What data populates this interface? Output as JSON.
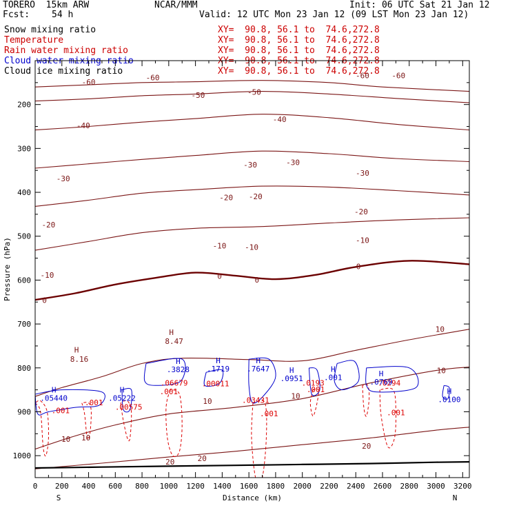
{
  "header": {
    "model": "TORERO  15km ARW",
    "center": "NCAR/MMM",
    "init": "Init: 06 UTC Sat 21 Jan 12",
    "fcst_label": "Fcst:",
    "fcst_value": "54 h",
    "valid": "Valid: 12 UTC Mon 23 Jan 12 (09 LST Mon 23 Jan 12)"
  },
  "fields": [
    {
      "name": "Snow mixing ratio",
      "xy": "XY=  90.8, 56.1 to  74.6,272.8",
      "color": "#000000"
    },
    {
      "name": "Temperature",
      "xy": "XY=  90.8, 56.1 to  74.6,272.8",
      "color": "#cc0000"
    },
    {
      "name": "Rain water mixing ratio",
      "xy": "XY=  90.8, 56.1 to  74.6,272.8",
      "color": "#cc0000"
    },
    {
      "name": "Cloud water mixing ratio",
      "xy": "XY=  90.8, 56.1 to  74.6,272.8",
      "color": "#0000cc"
    },
    {
      "name": "Cloud ice mixing ratio",
      "xy": "XY=  90.8, 56.1 to  74.6,272.8",
      "color": "#000000"
    }
  ],
  "chart_data": {
    "type": "contour",
    "xlabel": "Distance (km)",
    "ylabel": "Pressure (hPa)",
    "xlim": [
      0,
      3250
    ],
    "ylim": [
      1050,
      100
    ],
    "x_ticks": [
      0,
      200,
      400,
      600,
      800,
      1000,
      1200,
      1400,
      1600,
      1800,
      2000,
      2200,
      2400,
      2600,
      2800,
      3000,
      3200
    ],
    "y_ticks": [
      200,
      300,
      400,
      500,
      600,
      700,
      800,
      900,
      1000
    ],
    "left_end": "S",
    "right_end": "N",
    "colors": {
      "temperature": "#7a1414",
      "zero_isotherm": "#6b0000",
      "rain": "#dd0000",
      "cloud_water": "#0000cc",
      "terrain": "#000000"
    },
    "temperature_isotherms": [
      {
        "value": -60,
        "points": [
          [
            0,
            160
          ],
          [
            400,
            155
          ],
          [
            800,
            150
          ],
          [
            1200,
            148
          ],
          [
            1700,
            145
          ],
          [
            2200,
            150
          ],
          [
            2600,
            160
          ],
          [
            3250,
            170
          ]
        ]
      },
      {
        "value": -50,
        "points": [
          [
            0,
            192
          ],
          [
            400,
            187
          ],
          [
            800,
            180
          ],
          [
            1200,
            176
          ],
          [
            1700,
            170
          ],
          [
            2200,
            176
          ],
          [
            2700,
            186
          ],
          [
            3250,
            196
          ]
        ]
      },
      {
        "value": -40,
        "points": [
          [
            0,
            258
          ],
          [
            400,
            250
          ],
          [
            800,
            240
          ],
          [
            1200,
            232
          ],
          [
            1700,
            222
          ],
          [
            2200,
            230
          ],
          [
            2700,
            245
          ],
          [
            3250,
            258
          ]
        ]
      },
      {
        "value": -30,
        "points": [
          [
            0,
            345
          ],
          [
            400,
            335
          ],
          [
            800,
            325
          ],
          [
            1200,
            316
          ],
          [
            1700,
            306
          ],
          [
            2200,
            312
          ],
          [
            2700,
            323
          ],
          [
            3250,
            330
          ]
        ]
      },
      {
        "value": -20,
        "points": [
          [
            0,
            432
          ],
          [
            400,
            418
          ],
          [
            800,
            402
          ],
          [
            1200,
            394
          ],
          [
            1700,
            386
          ],
          [
            2200,
            388
          ],
          [
            2700,
            396
          ],
          [
            3250,
            406
          ]
        ]
      },
      {
        "value": -10,
        "points": [
          [
            0,
            532
          ],
          [
            400,
            512
          ],
          [
            800,
            492
          ],
          [
            1200,
            482
          ],
          [
            1700,
            478
          ],
          [
            2200,
            470
          ],
          [
            2700,
            463
          ],
          [
            3250,
            458
          ]
        ]
      },
      {
        "value": 0,
        "points": [
          [
            0,
            645
          ],
          [
            300,
            630
          ],
          [
            600,
            610
          ],
          [
            900,
            595
          ],
          [
            1200,
            583
          ],
          [
            1500,
            590
          ],
          [
            1800,
            598
          ],
          [
            2100,
            588
          ],
          [
            2400,
            570
          ],
          [
            2800,
            556
          ],
          [
            3250,
            564
          ]
        ]
      },
      {
        "value": 10,
        "points": [
          [
            0,
            865
          ],
          [
            200,
            845
          ],
          [
            500,
            820
          ],
          [
            800,
            790
          ],
          [
            1100,
            778
          ],
          [
            1600,
            781
          ],
          [
            2000,
            784
          ],
          [
            2400,
            760
          ],
          [
            2800,
            736
          ],
          [
            3250,
            712
          ]
        ]
      },
      {
        "value": 10,
        "points": [
          [
            0,
            985
          ],
          [
            300,
            955
          ],
          [
            600,
            930
          ],
          [
            1000,
            905
          ],
          [
            1500,
            890
          ],
          [
            2000,
            870
          ],
          [
            2500,
            835
          ],
          [
            3000,
            806
          ],
          [
            3250,
            798
          ]
        ]
      },
      {
        "value": 20,
        "points": [
          [
            0,
            1030
          ],
          [
            500,
            1017
          ],
          [
            1000,
            1003
          ],
          [
            1500,
            990
          ],
          [
            2000,
            975
          ],
          [
            2500,
            960
          ],
          [
            3000,
            942
          ],
          [
            3250,
            935
          ]
        ]
      }
    ],
    "temperature_labels": [
      {
        "text": "-60",
        "x": 400,
        "p": 155
      },
      {
        "text": "-60",
        "x": 880,
        "p": 145
      },
      {
        "text": "-60",
        "x": 2450,
        "p": 140
      },
      {
        "text": "-60",
        "x": 2720,
        "p": 140
      },
      {
        "text": "-50",
        "x": 1220,
        "p": 185
      },
      {
        "text": "-50",
        "x": 1640,
        "p": 178
      },
      {
        "text": "-40",
        "x": 360,
        "p": 254
      },
      {
        "text": "-40",
        "x": 1830,
        "p": 240
      },
      {
        "text": "-30",
        "x": 210,
        "p": 375
      },
      {
        "text": "-30",
        "x": 1610,
        "p": 343
      },
      {
        "text": "-30",
        "x": 1930,
        "p": 338
      },
      {
        "text": "-30",
        "x": 2450,
        "p": 362
      },
      {
        "text": "-20",
        "x": 100,
        "p": 480
      },
      {
        "text": "-20",
        "x": 1430,
        "p": 418
      },
      {
        "text": "-20",
        "x": 1650,
        "p": 416
      },
      {
        "text": "-20",
        "x": 2440,
        "p": 450
      },
      {
        "text": "-10",
        "x": 90,
        "p": 595
      },
      {
        "text": "-10",
        "x": 1380,
        "p": 528
      },
      {
        "text": "-10",
        "x": 1620,
        "p": 531
      },
      {
        "text": "-10",
        "x": 2450,
        "p": 515
      },
      {
        "text": "0",
        "x": 70,
        "p": 652
      },
      {
        "text": "0",
        "x": 1380,
        "p": 597
      },
      {
        "text": "0",
        "x": 1660,
        "p": 606
      },
      {
        "text": "0",
        "x": 2420,
        "p": 575
      },
      {
        "text": "10",
        "x": 3030,
        "p": 718
      },
      {
        "text": "10",
        "x": 3040,
        "p": 812
      },
      {
        "text": "10",
        "x": 1950,
        "p": 870
      },
      {
        "text": "10",
        "x": 1290,
        "p": 882
      },
      {
        "text": "10",
        "x": 230,
        "p": 968
      },
      {
        "text": "10",
        "x": 380,
        "p": 965
      },
      {
        "text": "20",
        "x": 2480,
        "p": 984
      },
      {
        "text": "20",
        "x": 1250,
        "p": 1012
      },
      {
        "text": "20",
        "x": 1010,
        "p": 1020
      }
    ],
    "maxima_labels": [
      {
        "text": "H",
        "x": 310,
        "p": 765,
        "color": "#7a1414"
      },
      {
        "text": "8.16",
        "x": 330,
        "p": 786,
        "color": "#7a1414"
      },
      {
        "text": "H",
        "x": 1020,
        "p": 725,
        "color": "#7a1414"
      },
      {
        "text": "8.47",
        "x": 1040,
        "p": 745,
        "color": "#7a1414"
      }
    ],
    "rain_maxima": [
      {
        "x": 1040,
        "p": 840,
        "value": ".06679"
      },
      {
        "x": 1350,
        "p": 842,
        "value": ".00011"
      },
      {
        "x": 1650,
        "p": 880,
        "value": ".03431"
      },
      {
        "x": 2080,
        "p": 840,
        "value": ".0193"
      },
      {
        "x": 2650,
        "p": 840,
        "value": ".0294"
      }
    ],
    "rain_contours": [
      {
        "label": ".001",
        "points": [
          [
            0,
            880
          ],
          [
            40,
            900
          ],
          [
            60,
            980
          ],
          [
            80,
            1000
          ],
          [
            100,
            960
          ],
          [
            90,
            900
          ],
          [
            40,
            875
          ]
        ]
      },
      {
        "label": ".001",
        "points": [
          [
            350,
            880
          ],
          [
            370,
            905
          ],
          [
            390,
            960
          ],
          [
            410,
            950
          ],
          [
            420,
            900
          ],
          [
            400,
            880
          ]
        ]
      },
      {
        "label": ".001",
        "points": [
          [
            640,
            880
          ],
          [
            660,
            920
          ],
          [
            690,
            960
          ],
          [
            710,
            960
          ],
          [
            720,
            900
          ],
          [
            690,
            875
          ]
        ]
      },
      {
        "label": ".001",
        "points": [
          [
            1010,
            850
          ],
          [
            980,
            890
          ],
          [
            990,
            960
          ],
          [
            1030,
            1000
          ],
          [
            1080,
            990
          ],
          [
            1100,
            930
          ],
          [
            1080,
            860
          ]
        ]
      },
      {
        "label": ".001",
        "points": [
          [
            1630,
            880
          ],
          [
            1620,
            960
          ],
          [
            1650,
            1050
          ],
          [
            1700,
            1050
          ],
          [
            1730,
            960
          ],
          [
            1720,
            880
          ]
        ]
      },
      {
        "label": ".001",
        "points": [
          [
            2080,
            850
          ],
          [
            2060,
            880
          ],
          [
            2080,
            910
          ],
          [
            2110,
            880
          ],
          [
            2120,
            850
          ]
        ]
      },
      {
        "label": ".001",
        "points": [
          [
            2450,
            840
          ],
          [
            2460,
            890
          ],
          [
            2480,
            910
          ],
          [
            2500,
            870
          ],
          [
            2490,
            840
          ]
        ]
      },
      {
        "label": ".001",
        "points": [
          [
            2580,
            850
          ],
          [
            2590,
            910
          ],
          [
            2640,
            980
          ],
          [
            2690,
            960
          ],
          [
            2700,
            900
          ],
          [
            2680,
            850
          ]
        ]
      }
    ],
    "rain_contour_labels": [
      {
        "text": ".001",
        "x": 190,
        "p": 903
      },
      {
        "text": ".001",
        "x": 440,
        "p": 885
      },
      {
        "text": ".00575",
        "x": 700,
        "p": 895
      },
      {
        "text": ".001",
        "x": 1000,
        "p": 860
      },
      {
        "text": ".001",
        "x": 1750,
        "p": 910
      },
      {
        "text": ".001",
        "x": 2100,
        "p": 855
      },
      {
        "text": ".001",
        "x": 2700,
        "p": 908
      }
    ],
    "cloud_water_maxima": [
      {
        "x": 140,
        "p": 875,
        "value": ".05440"
      },
      {
        "x": 650,
        "p": 875,
        "value": ".05222"
      },
      {
        "x": 1070,
        "p": 810,
        "value": ".3828"
      },
      {
        "x": 1370,
        "p": 808,
        "value": ".1719"
      },
      {
        "x": 1670,
        "p": 808,
        "value": ".7647"
      },
      {
        "x": 1920,
        "p": 830,
        "value": ".0951"
      },
      {
        "x": 2230,
        "p": 828,
        "value": ".001"
      },
      {
        "x": 2590,
        "p": 838,
        "value": ".0769"
      },
      {
        "x": 3100,
        "p": 878,
        "value": ".0100"
      }
    ],
    "cloud_water_contours": [
      {
        "points": [
          [
            0,
            860
          ],
          [
            200,
            850
          ],
          [
            500,
            855
          ],
          [
            480,
            885
          ],
          [
            300,
            890
          ],
          [
            100,
            900
          ],
          [
            20,
            905
          ]
        ]
      },
      {
        "points": [
          [
            650,
            850
          ],
          [
            720,
            850
          ],
          [
            710,
            895
          ],
          [
            660,
            895
          ]
        ]
      },
      {
        "points": [
          [
            830,
            790
          ],
          [
            1100,
            780
          ],
          [
            1090,
            830
          ],
          [
            900,
            840
          ],
          [
            820,
            830
          ]
        ]
      },
      {
        "points": [
          [
            1280,
            810
          ],
          [
            1400,
            805
          ],
          [
            1380,
            835
          ],
          [
            1270,
            840
          ]
        ]
      },
      {
        "points": [
          [
            1600,
            780
          ],
          [
            1750,
            780
          ],
          [
            1800,
            820
          ],
          [
            1720,
            860
          ],
          [
            1630,
            880
          ],
          [
            1600,
            840
          ]
        ]
      },
      {
        "points": [
          [
            2050,
            800
          ],
          [
            2110,
            805
          ],
          [
            2130,
            850
          ],
          [
            2070,
            860
          ]
        ]
      },
      {
        "points": [
          [
            2260,
            790
          ],
          [
            2390,
            785
          ],
          [
            2420,
            830
          ],
          [
            2300,
            850
          ],
          [
            2240,
            830
          ]
        ]
      },
      {
        "points": [
          [
            2480,
            800
          ],
          [
            2800,
            800
          ],
          [
            2850,
            845
          ],
          [
            2560,
            855
          ],
          [
            2480,
            840
          ]
        ]
      },
      {
        "points": [
          [
            3060,
            840
          ],
          [
            3100,
            845
          ],
          [
            3090,
            870
          ],
          [
            3050,
            865
          ]
        ]
      }
    ],
    "terrain": [
      [
        0,
        1028
      ],
      [
        500,
        1026
      ],
      [
        1000,
        1024
      ],
      [
        1500,
        1022
      ],
      [
        2000,
        1020
      ],
      [
        2500,
        1018
      ],
      [
        3000,
        1015
      ],
      [
        3250,
        1014
      ]
    ]
  }
}
